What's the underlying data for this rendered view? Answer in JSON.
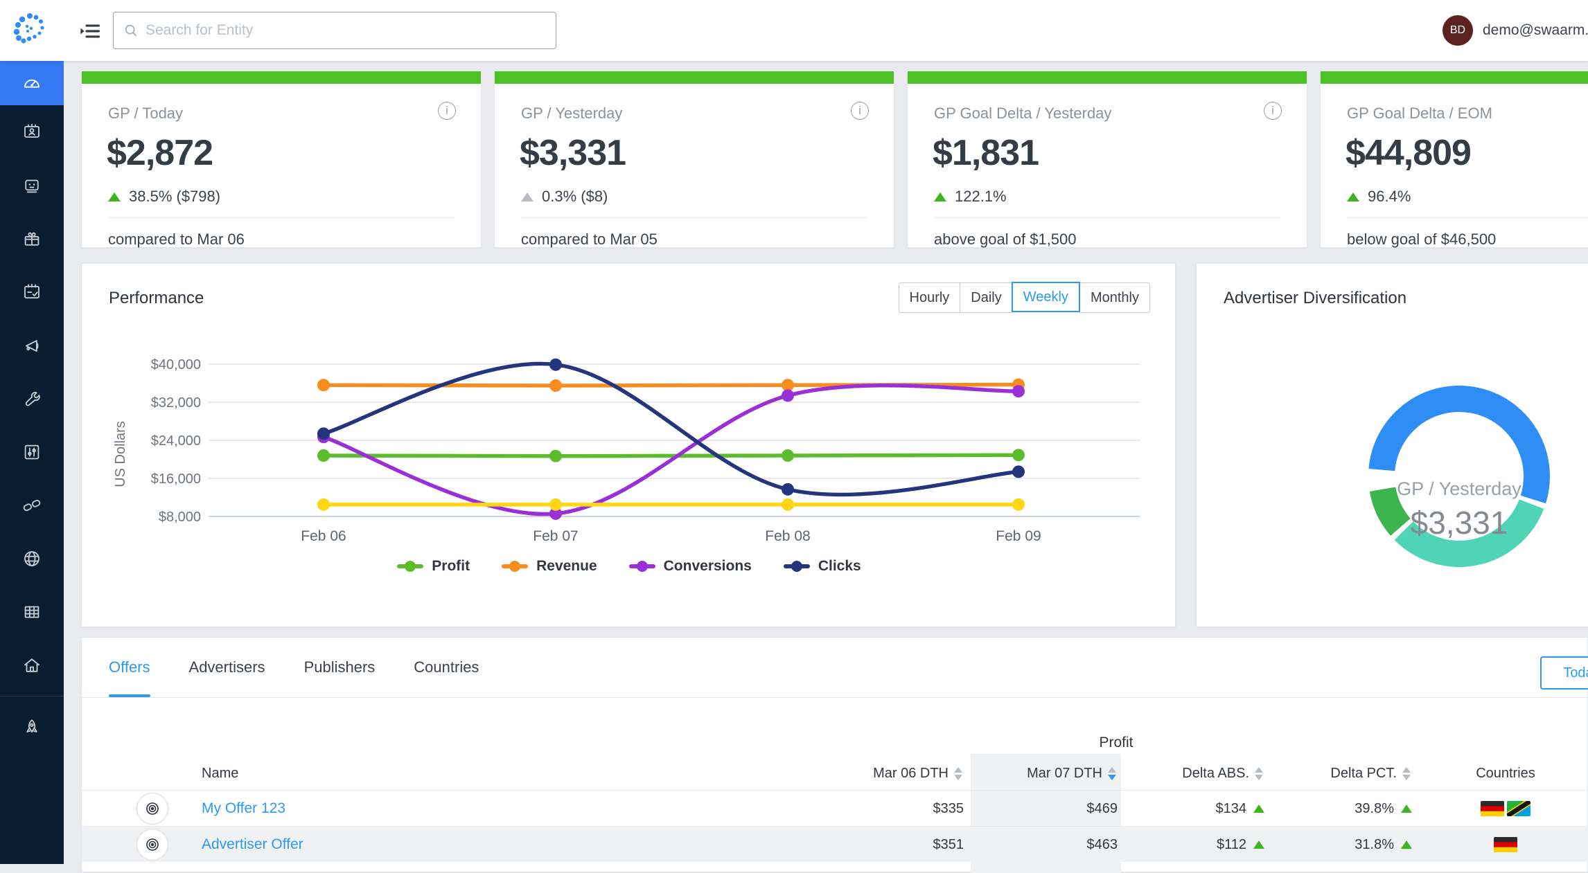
{
  "topbar": {
    "search_placeholder": "Search for Entity",
    "user_email": "demo@swaarm.com",
    "avatar_initials": "BD"
  },
  "sidebar": {
    "items": [
      {
        "icon": "dashboard-icon",
        "active": true
      },
      {
        "icon": "advertisers-icon",
        "active": false
      },
      {
        "icon": "publishers-icon",
        "active": false
      },
      {
        "icon": "offers-icon",
        "active": false
      },
      {
        "icon": "planning-icon",
        "active": false
      },
      {
        "icon": "announcements-icon",
        "active": false
      },
      {
        "icon": "tools-icon",
        "active": false
      },
      {
        "icon": "controls-icon",
        "active": false
      },
      {
        "icon": "integrations-icon",
        "active": false
      },
      {
        "icon": "globe-icon",
        "active": false
      },
      {
        "icon": "data-grid-icon",
        "active": false
      },
      {
        "icon": "home-icon",
        "active": false
      }
    ],
    "footer_items": [
      {
        "icon": "rocket-icon",
        "active": false
      }
    ]
  },
  "kpi_cards": [
    {
      "title": "GP / Today",
      "value": "$2,872",
      "delta": "38.5% ($798)",
      "trend": "up",
      "trend_color": "#3cb521",
      "footer": "compared to Mar 06"
    },
    {
      "title": "GP / Yesterday",
      "value": "$3,331",
      "delta": "0.3% ($8)",
      "trend": "up",
      "trend_color": "#b9bec5",
      "footer": "compared to Mar 05"
    },
    {
      "title": "GP Goal Delta / Yesterday",
      "value": "$1,831",
      "delta": "122.1%",
      "trend": "up",
      "trend_color": "#3cb521",
      "footer": "above goal of $1,500"
    },
    {
      "title": "GP Goal Delta / EOM",
      "value": "$44,809",
      "delta": "96.4%",
      "trend": "up",
      "trend_color": "#3cb521",
      "footer": "below goal of $46,500"
    }
  ],
  "performance": {
    "title": "Performance",
    "range_tabs": [
      "Hourly",
      "Daily",
      "Weekly",
      "Monthly"
    ],
    "active_tab": "Weekly"
  },
  "chart_data": {
    "type": "line",
    "x": [
      "Feb 06",
      "Feb 07",
      "Feb 08",
      "Feb 09"
    ],
    "ylabel": "US Dollars",
    "ylim": [
      8000,
      40000
    ],
    "yticks": [
      "$8,000",
      "$16,000",
      "$24,000",
      "$32,000",
      "$40,000"
    ],
    "grid": true,
    "legend_position": "bottom",
    "series": [
      {
        "name": "Profit",
        "color": "#5bbd2b",
        "in_legend": true,
        "values": [
          20800,
          20700,
          20800,
          20900
        ]
      },
      {
        "name": "Revenue",
        "color": "#f78d1e",
        "in_legend": true,
        "values": [
          35600,
          35500,
          35600,
          35700
        ]
      },
      {
        "name": "Conversions",
        "color": "#9b2fd6",
        "in_legend": true,
        "values": [
          24700,
          8600,
          33400,
          34300
        ]
      },
      {
        "name": "Clicks",
        "color": "#23357c",
        "in_legend": true,
        "values": [
          25400,
          39900,
          13700,
          17400
        ]
      },
      {
        "name": "",
        "color": "#ffd615",
        "in_legend": false,
        "values": [
          10500,
          10500,
          10500,
          10500
        ]
      }
    ]
  },
  "diversification": {
    "title": "Advertiser Diversification",
    "center_label": "GP / Yesterday",
    "center_value": "$3,331",
    "segments": [
      {
        "color": "#2f8ef5",
        "pct": 54.5
      },
      {
        "color": "#4fd4b8",
        "pct": 32.8
      },
      {
        "color": "#3cb54c",
        "pct": 9.7
      }
    ]
  },
  "entity_section": {
    "tabs": [
      "Offers",
      "Advertisers",
      "Publishers",
      "Countries"
    ],
    "active_tab": "Offers",
    "date_button": "Today",
    "table": {
      "group_header": "Profit",
      "columns": [
        "Name",
        "Mar 06 DTH",
        "Mar 07 DTH",
        "Delta ABS.",
        "Delta PCT.",
        "Countries"
      ],
      "sorted_column": "Mar 07 DTH",
      "sort_direction": "desc",
      "rows": [
        {
          "name": "My Offer 123",
          "mar06": "$335",
          "mar07": "$469",
          "delta_abs": "$134",
          "delta_abs_trend": "up",
          "delta_pct": "39.8%",
          "delta_pct_trend": "up",
          "countries": [
            "DE",
            "TZ"
          ]
        },
        {
          "name": "Advertiser Offer",
          "mar06": "$351",
          "mar07": "$463",
          "delta_abs": "$112",
          "delta_abs_trend": "up",
          "delta_pct": "31.8%",
          "delta_pct_trend": "up",
          "countries": [
            "DE"
          ]
        }
      ]
    }
  }
}
